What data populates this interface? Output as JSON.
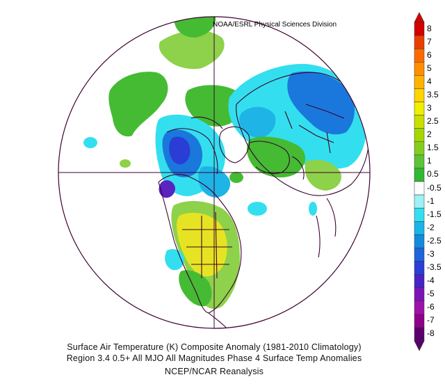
{
  "header": {
    "credit": "NOAA/ESRL Physical Sciences Division"
  },
  "caption": {
    "line1": "Surface Air Temperature (K) Composite Anomaly (1981-2010 Climatology)",
    "line2": "Region 3.4 0.5+ All MJO All Magnitudes   Phase 4 Surface Temp Anomalies",
    "line3": "NCEP/NCAR Reanalysis"
  },
  "colorbar": {
    "labels": [
      "8",
      "7",
      "6",
      "5",
      "4",
      "3.5",
      "3",
      "2.5",
      "2",
      "1.5",
      "1",
      "0.5",
      "-0.5",
      "-1",
      "-1.5",
      "-2",
      "-2.5",
      "-3",
      "-3.5",
      "-4",
      "-5",
      "-6",
      "-7",
      "-8"
    ],
    "colors": [
      "#d50000",
      "#ea3f00",
      "#ff6a00",
      "#ff8f00",
      "#ffb300",
      "#ffd400",
      "#f0ef00",
      "#c8e000",
      "#a4d800",
      "#84cd1f",
      "#5cc436",
      "#32b832",
      "#ffffff",
      "#9df2f5",
      "#33e0ee",
      "#1ab4e6",
      "#118cdc",
      "#1e64dc",
      "#2b3ed8",
      "#4a22c8",
      "#7a14b8",
      "#a010a8",
      "#900088",
      "#5a006a"
    ]
  },
  "map_colors": {
    "warm_green": "#44bb33",
    "light_green": "#8ed14a",
    "yellow_green": "#c6dc2e",
    "yellow": "#e6e422",
    "cyan": "#33dfee",
    "light_blue": "#1eb4e6",
    "mid_blue": "#1a78dc",
    "dark_blue": "#2a3ed6",
    "purple": "#5a24c0",
    "outline": "#3d0030"
  }
}
